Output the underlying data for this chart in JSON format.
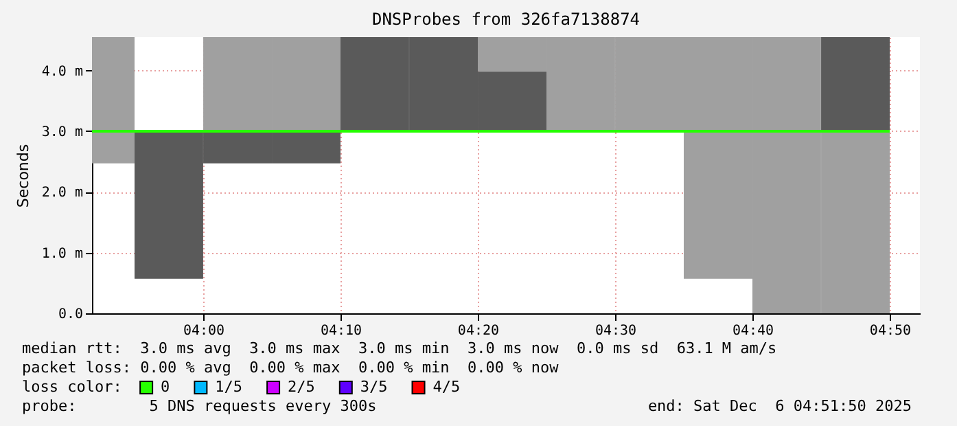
{
  "chart_data": {
    "type": "bar",
    "title": "DNSProbes from 326fa7138874",
    "ylabel": "Seconds",
    "legend_title": "loss color:",
    "legend": "bottom",
    "grid": true,
    "xlim": [
      3.865,
      4.87
    ],
    "ylim": [
      0,
      4.55
    ],
    "xticks": [
      {
        "value": 4.0,
        "label": "04:00"
      },
      {
        "value": 4.1667,
        "label": "04:10"
      },
      {
        "value": 4.3333,
        "label": "04:20"
      },
      {
        "value": 4.5,
        "label": "04:30"
      },
      {
        "value": 4.6667,
        "label": "04:40"
      },
      {
        "value": 4.8333,
        "label": "04:50"
      }
    ],
    "yticks": [
      {
        "value": 0,
        "label": "0.0"
      },
      {
        "value": 1,
        "label": "1.0 m"
      },
      {
        "value": 2,
        "label": "2.0 m"
      },
      {
        "value": 3,
        "label": "3.0 m"
      },
      {
        "value": 4,
        "label": "4.0 m"
      }
    ],
    "series": [
      {
        "color": "#a0a0a0",
        "x": [
          3.875,
          4.0417,
          4.125,
          4.375,
          4.4583,
          4.5417,
          4.625,
          4.7083,
          4.7917
        ],
        "base": [
          2.47,
          3.0,
          3.0,
          3.98,
          3.0,
          3.0,
          0.57,
          0,
          0
        ],
        "values": [
          2.08,
          1.55,
          1.55,
          0.57,
          1.55,
          1.55,
          3.98,
          4.55,
          3.0
        ]
      },
      {
        "color": "#5a5a5a",
        "x": [
          3.9583,
          4.0417,
          4.125,
          4.2083,
          4.2917,
          4.375,
          4.7917
        ],
        "base": [
          0.57,
          2.47,
          2.47,
          3.0,
          3.0,
          3.0,
          3.0
        ],
        "values": [
          2.43,
          0.53,
          0.53,
          1.55,
          1.55,
          0.98,
          1.55
        ]
      },
      {
        "type": "line",
        "name": "0",
        "color": "#26ff00",
        "x": [
          3.865,
          4.8333
        ],
        "values": [
          3.0,
          3.0
        ]
      },
      {
        "type": "line",
        "name": "1/5",
        "color": "#00b8ff"
      },
      {
        "type": "line",
        "name": "2/5",
        "color": "#cc00ff"
      },
      {
        "type": "line",
        "name": "3/5",
        "color": "#5e00ff"
      },
      {
        "type": "line",
        "name": "4/5",
        "color": "#ff0000"
      }
    ],
    "annotations": [
      "median rtt:  3.0 ms avg  3.0 ms max  3.0 ms min  3.0 ms now  0.0 ms sd  63.1 M am/s",
      "packet loss: 0.00 % avg  0.00 % max  0.00 % min  0.00 % now",
      "probe:        5 DNS requests every 300s",
      "end: Sat Dec  6 04:51:50 2025"
    ]
  }
}
